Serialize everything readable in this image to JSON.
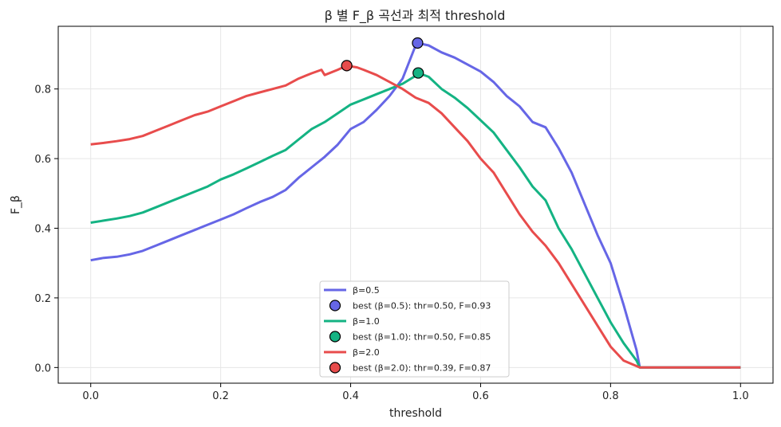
{
  "chart_data": {
    "type": "line",
    "title": "β 별 F_β 곡선과 최적 threshold",
    "xlabel": "threshold",
    "ylabel": "F_β",
    "xlim": [
      -0.05,
      1.05
    ],
    "ylim": [
      -0.045,
      0.98
    ],
    "xticks": [
      0.0,
      0.2,
      0.4,
      0.6,
      0.8,
      1.0
    ],
    "yticks": [
      0.0,
      0.2,
      0.4,
      0.6,
      0.8
    ],
    "xtick_labels": [
      "0.0",
      "0.2",
      "0.4",
      "0.6",
      "0.8",
      "1.0"
    ],
    "ytick_labels": [
      "0.0",
      "0.2",
      "0.4",
      "0.6",
      "0.8"
    ],
    "grid": true,
    "legend_position": "lower-center",
    "series": [
      {
        "name": "β=0.5",
        "color": "#6666e6",
        "points": [
          [
            0.0,
            0.308
          ],
          [
            0.02,
            0.315
          ],
          [
            0.04,
            0.318
          ],
          [
            0.06,
            0.325
          ],
          [
            0.08,
            0.335
          ],
          [
            0.1,
            0.35
          ],
          [
            0.12,
            0.365
          ],
          [
            0.14,
            0.38
          ],
          [
            0.16,
            0.395
          ],
          [
            0.18,
            0.41
          ],
          [
            0.2,
            0.425
          ],
          [
            0.22,
            0.44
          ],
          [
            0.24,
            0.458
          ],
          [
            0.26,
            0.475
          ],
          [
            0.28,
            0.49
          ],
          [
            0.3,
            0.51
          ],
          [
            0.32,
            0.545
          ],
          [
            0.34,
            0.575
          ],
          [
            0.36,
            0.605
          ],
          [
            0.38,
            0.64
          ],
          [
            0.4,
            0.685
          ],
          [
            0.42,
            0.705
          ],
          [
            0.44,
            0.74
          ],
          [
            0.46,
            0.78
          ],
          [
            0.48,
            0.83
          ],
          [
            0.5,
            0.925
          ],
          [
            0.503,
            0.932
          ],
          [
            0.52,
            0.925
          ],
          [
            0.54,
            0.905
          ],
          [
            0.56,
            0.89
          ],
          [
            0.58,
            0.87
          ],
          [
            0.6,
            0.85
          ],
          [
            0.62,
            0.82
          ],
          [
            0.64,
            0.78
          ],
          [
            0.66,
            0.75
          ],
          [
            0.68,
            0.705
          ],
          [
            0.7,
            0.69
          ],
          [
            0.72,
            0.63
          ],
          [
            0.74,
            0.56
          ],
          [
            0.76,
            0.47
          ],
          [
            0.78,
            0.38
          ],
          [
            0.8,
            0.3
          ],
          [
            0.82,
            0.18
          ],
          [
            0.84,
            0.05
          ],
          [
            0.845,
            0.0
          ],
          [
            0.9,
            0.0
          ],
          [
            1.0,
            0.0
          ]
        ]
      },
      {
        "name": "β=1.0",
        "color": "#14b383",
        "points": [
          [
            0.0,
            0.416
          ],
          [
            0.02,
            0.422
          ],
          [
            0.04,
            0.428
          ],
          [
            0.06,
            0.435
          ],
          [
            0.08,
            0.445
          ],
          [
            0.1,
            0.46
          ],
          [
            0.12,
            0.475
          ],
          [
            0.14,
            0.49
          ],
          [
            0.16,
            0.505
          ],
          [
            0.18,
            0.52
          ],
          [
            0.2,
            0.54
          ],
          [
            0.22,
            0.555
          ],
          [
            0.24,
            0.572
          ],
          [
            0.26,
            0.59
          ],
          [
            0.28,
            0.608
          ],
          [
            0.3,
            0.625
          ],
          [
            0.32,
            0.655
          ],
          [
            0.34,
            0.685
          ],
          [
            0.36,
            0.705
          ],
          [
            0.38,
            0.73
          ],
          [
            0.4,
            0.755
          ],
          [
            0.42,
            0.77
          ],
          [
            0.44,
            0.785
          ],
          [
            0.46,
            0.8
          ],
          [
            0.48,
            0.815
          ],
          [
            0.5,
            0.838
          ],
          [
            0.504,
            0.846
          ],
          [
            0.52,
            0.835
          ],
          [
            0.54,
            0.8
          ],
          [
            0.56,
            0.775
          ],
          [
            0.58,
            0.745
          ],
          [
            0.6,
            0.71
          ],
          [
            0.62,
            0.675
          ],
          [
            0.64,
            0.625
          ],
          [
            0.66,
            0.575
          ],
          [
            0.68,
            0.52
          ],
          [
            0.7,
            0.48
          ],
          [
            0.72,
            0.4
          ],
          [
            0.74,
            0.34
          ],
          [
            0.76,
            0.27
          ],
          [
            0.78,
            0.2
          ],
          [
            0.8,
            0.13
          ],
          [
            0.82,
            0.07
          ],
          [
            0.84,
            0.02
          ],
          [
            0.845,
            0.0
          ],
          [
            0.9,
            0.0
          ],
          [
            1.0,
            0.0
          ]
        ]
      },
      {
        "name": "β=2.0",
        "color": "#e84c4c",
        "points": [
          [
            0.0,
            0.641
          ],
          [
            0.02,
            0.645
          ],
          [
            0.04,
            0.65
          ],
          [
            0.06,
            0.656
          ],
          [
            0.08,
            0.665
          ],
          [
            0.1,
            0.68
          ],
          [
            0.12,
            0.695
          ],
          [
            0.14,
            0.71
          ],
          [
            0.16,
            0.725
          ],
          [
            0.18,
            0.735
          ],
          [
            0.2,
            0.75
          ],
          [
            0.22,
            0.765
          ],
          [
            0.24,
            0.78
          ],
          [
            0.26,
            0.79
          ],
          [
            0.28,
            0.8
          ],
          [
            0.3,
            0.81
          ],
          [
            0.32,
            0.83
          ],
          [
            0.34,
            0.845
          ],
          [
            0.355,
            0.855
          ],
          [
            0.36,
            0.84
          ],
          [
            0.38,
            0.855
          ],
          [
            0.394,
            0.867
          ],
          [
            0.41,
            0.862
          ],
          [
            0.42,
            0.855
          ],
          [
            0.44,
            0.84
          ],
          [
            0.46,
            0.82
          ],
          [
            0.48,
            0.8
          ],
          [
            0.5,
            0.775
          ],
          [
            0.52,
            0.76
          ],
          [
            0.54,
            0.73
          ],
          [
            0.56,
            0.69
          ],
          [
            0.58,
            0.65
          ],
          [
            0.6,
            0.6
          ],
          [
            0.62,
            0.56
          ],
          [
            0.64,
            0.5
          ],
          [
            0.66,
            0.44
          ],
          [
            0.68,
            0.39
          ],
          [
            0.7,
            0.35
          ],
          [
            0.72,
            0.3
          ],
          [
            0.74,
            0.24
          ],
          [
            0.76,
            0.18
          ],
          [
            0.78,
            0.12
          ],
          [
            0.8,
            0.06
          ],
          [
            0.82,
            0.02
          ],
          [
            0.845,
            0.0
          ],
          [
            0.9,
            0.0
          ],
          [
            1.0,
            0.0
          ]
        ]
      }
    ],
    "best_points": [
      {
        "label": "best (β=0.5): thr=0.50, F=0.93",
        "x": 0.503,
        "y": 0.932,
        "color": "#6666e6"
      },
      {
        "label": "best (β=1.0): thr=0.50, F=0.85",
        "x": 0.504,
        "y": 0.846,
        "color": "#14b383"
      },
      {
        "label": "best (β=2.0): thr=0.39, F=0.87",
        "x": 0.394,
        "y": 0.867,
        "color": "#e84c4c"
      }
    ]
  }
}
